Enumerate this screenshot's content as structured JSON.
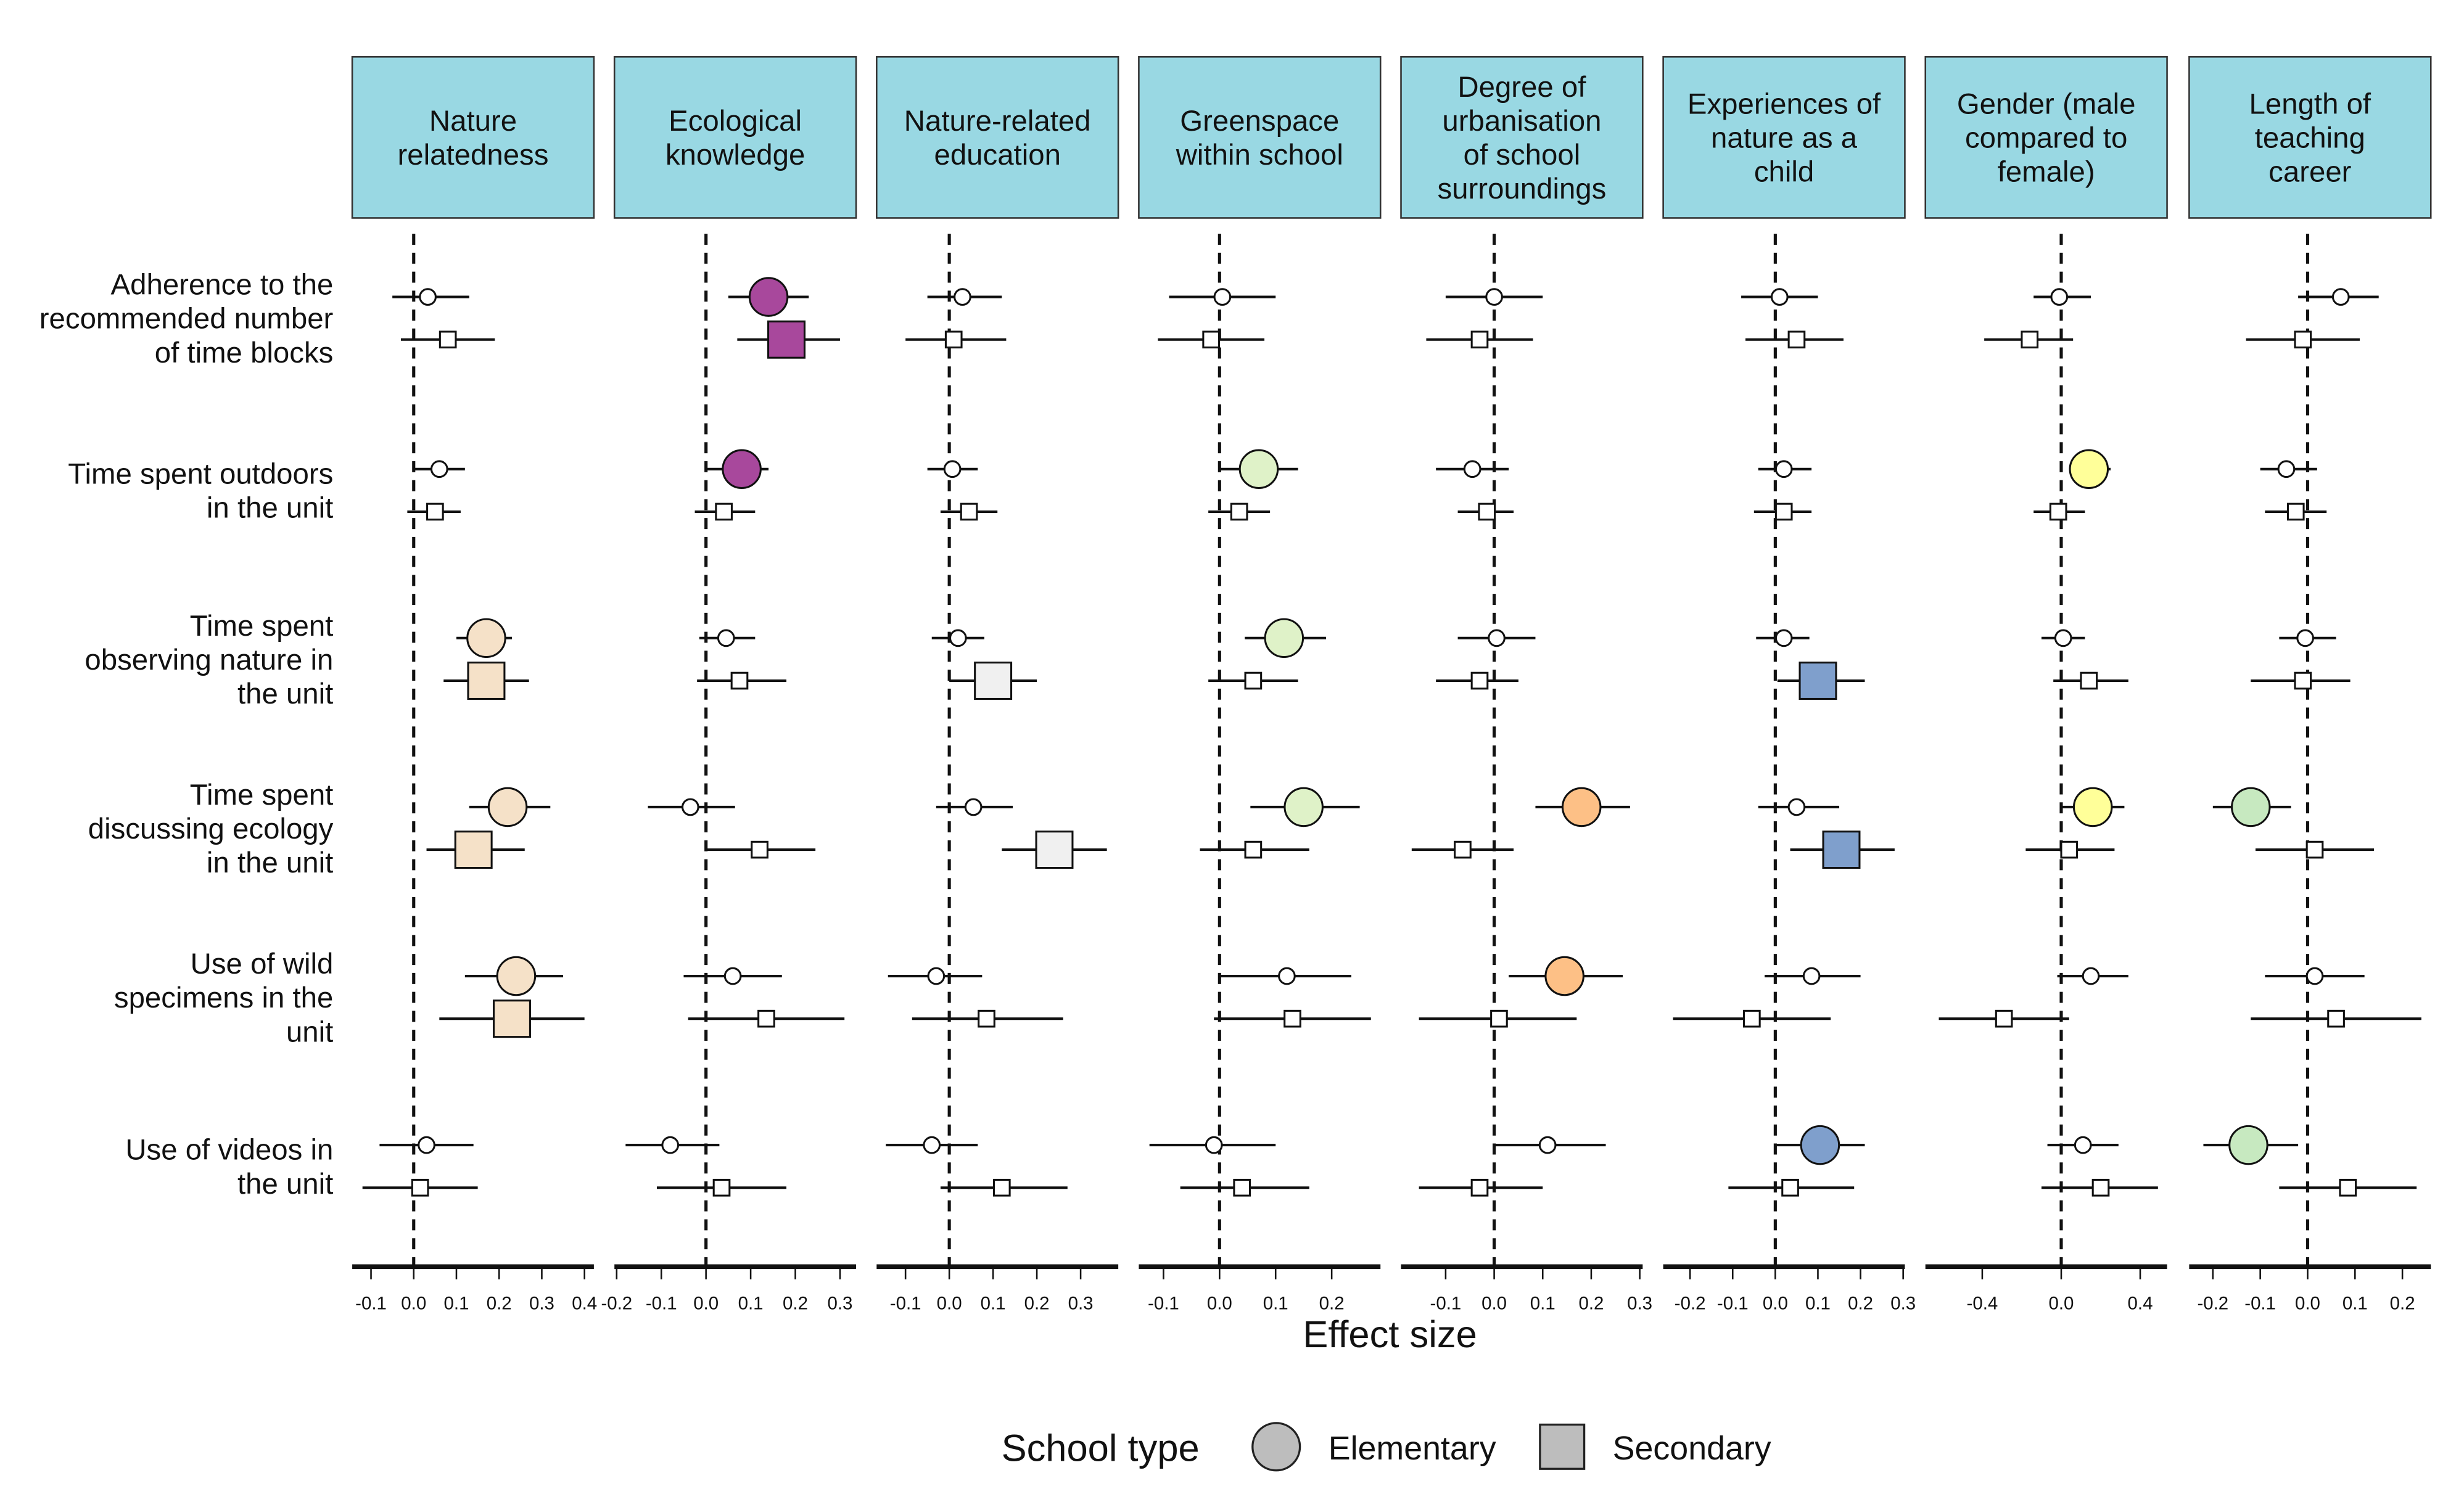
{
  "chart_data": {
    "type": "scatter",
    "subtype": "faceted forest plot (point estimate with confidence interval)",
    "xlabel": "Effect size",
    "legend": {
      "title": "School type",
      "placement": "bottom",
      "entries": [
        "Elementary",
        "Secondary"
      ]
    },
    "rows": [
      "Adherence to the\nrecommended number\nof time blocks",
      "Time spent outdoors\nin the unit",
      "Time spent\nobserving nature in\nthe unit",
      "Time spent\ndiscussing ecology\nin the unit",
      "Use of wild\nspecimens in the\nunit",
      "Use of videos in\nthe unit"
    ],
    "panels": [
      {
        "title": "Nature\nrelatedness",
        "color": "#f5e1c8",
        "xlim": [
          -0.144,
          0.422
        ],
        "ticks": [
          -0.1,
          0.0,
          0.1,
          0.2,
          0.3,
          0.4
        ],
        "tick_labels": [
          "-0.1",
          "0.0",
          "0.1",
          "0.2",
          "0.3",
          "0.4"
        ],
        "elementary": [
          [
            0.033,
            -0.05,
            0.13,
            0
          ],
          [
            0.06,
            0.0,
            0.12,
            0
          ],
          [
            0.17,
            0.1,
            0.23,
            1
          ],
          [
            0.22,
            0.13,
            0.32,
            1
          ],
          [
            0.24,
            0.12,
            0.35,
            1
          ],
          [
            0.03,
            -0.08,
            0.14,
            0
          ]
        ],
        "secondary": [
          [
            0.08,
            -0.03,
            0.19,
            0
          ],
          [
            0.05,
            -0.015,
            0.11,
            0
          ],
          [
            0.17,
            0.07,
            0.27,
            1
          ],
          [
            0.14,
            0.03,
            0.26,
            1
          ],
          [
            0.23,
            0.06,
            0.4,
            1
          ],
          [
            0.015,
            -0.12,
            0.15,
            0
          ]
        ]
      },
      {
        "title": "Ecological\nknowledge",
        "color": "#a8489c",
        "xlim": [
          -0.205,
          0.336
        ],
        "ticks": [
          -0.2,
          -0.1,
          0.0,
          0.1,
          0.2,
          0.3
        ],
        "tick_labels": [
          "-0.2",
          "-0.1",
          "0.0",
          "0.1",
          "0.2",
          "0.3"
        ],
        "elementary": [
          [
            0.14,
            0.05,
            0.23,
            1
          ],
          [
            0.08,
            0.0,
            0.14,
            1
          ],
          [
            0.045,
            -0.015,
            0.11,
            0
          ],
          [
            -0.035,
            -0.13,
            0.065,
            0
          ],
          [
            0.06,
            -0.05,
            0.17,
            0
          ],
          [
            -0.08,
            -0.18,
            0.03,
            0
          ]
        ],
        "secondary": [
          [
            0.18,
            0.07,
            0.3,
            1
          ],
          [
            0.04,
            -0.025,
            0.11,
            0
          ],
          [
            0.075,
            -0.02,
            0.18,
            0
          ],
          [
            0.12,
            0.0,
            0.245,
            0
          ],
          [
            0.135,
            -0.04,
            0.31,
            0
          ],
          [
            0.035,
            -0.11,
            0.18,
            0
          ]
        ]
      },
      {
        "title": "Nature-related\neducation",
        "color": "#f0f0f0",
        "xlim": [
          -0.166,
          0.386
        ],
        "ticks": [
          -0.1,
          0.0,
          0.1,
          0.2,
          0.3
        ],
        "tick_labels": [
          "-0.1",
          "0.0",
          "0.1",
          "0.2",
          "0.3"
        ],
        "elementary": [
          [
            0.03,
            -0.05,
            0.12,
            0
          ],
          [
            0.007,
            -0.05,
            0.065,
            0
          ],
          [
            0.02,
            -0.04,
            0.08,
            0
          ],
          [
            0.055,
            -0.03,
            0.145,
            0
          ],
          [
            -0.03,
            -0.14,
            0.075,
            0
          ],
          [
            -0.04,
            -0.145,
            0.065,
            0
          ]
        ],
        "secondary": [
          [
            0.01,
            -0.1,
            0.13,
            0
          ],
          [
            0.045,
            -0.02,
            0.11,
            0
          ],
          [
            0.1,
            0.0,
            0.2,
            1
          ],
          [
            0.24,
            0.12,
            0.36,
            1
          ],
          [
            0.085,
            -0.085,
            0.26,
            0
          ],
          [
            0.12,
            -0.02,
            0.27,
            0
          ]
        ]
      },
      {
        "title": "Greenspace\nwithin school",
        "color": "#dff2c8",
        "xlim": [
          -0.144,
          0.287
        ],
        "ticks": [
          -0.1,
          0.0,
          0.1,
          0.2
        ],
        "tick_labels": [
          "-0.1",
          "0.0",
          "0.1",
          "0.2"
        ],
        "elementary": [
          [
            0.005,
            -0.09,
            0.1,
            0
          ],
          [
            0.07,
            0.0,
            0.14,
            1
          ],
          [
            0.115,
            0.045,
            0.19,
            1
          ],
          [
            0.15,
            0.055,
            0.25,
            1
          ],
          [
            0.12,
            0.0,
            0.235,
            0
          ],
          [
            -0.01,
            -0.125,
            0.1,
            0
          ]
        ],
        "secondary": [
          [
            -0.015,
            -0.11,
            0.08,
            0
          ],
          [
            0.035,
            -0.02,
            0.09,
            0
          ],
          [
            0.06,
            -0.02,
            0.14,
            0
          ],
          [
            0.06,
            -0.035,
            0.16,
            0
          ],
          [
            0.13,
            -0.01,
            0.27,
            0
          ],
          [
            0.04,
            -0.07,
            0.16,
            0
          ]
        ]
      },
      {
        "title": "Degree of\nurbanisation\nof school\nsurroundings",
        "color": "#fdc086",
        "xlim": [
          -0.192,
          0.306
        ],
        "ticks": [
          -0.1,
          0.0,
          0.1,
          0.2,
          0.3
        ],
        "tick_labels": [
          "-0.1",
          "0.0",
          "0.1",
          "0.2",
          "0.3"
        ],
        "elementary": [
          [
            0.0,
            -0.1,
            0.1,
            0
          ],
          [
            -0.045,
            -0.12,
            0.03,
            0
          ],
          [
            0.005,
            -0.075,
            0.085,
            0
          ],
          [
            0.18,
            0.085,
            0.28,
            1
          ],
          [
            0.145,
            0.03,
            0.265,
            1
          ],
          [
            0.11,
            0.0,
            0.23,
            0
          ]
        ],
        "secondary": [
          [
            -0.03,
            -0.14,
            0.08,
            0
          ],
          [
            -0.015,
            -0.075,
            0.04,
            0
          ],
          [
            -0.03,
            -0.12,
            0.05,
            0
          ],
          [
            -0.065,
            -0.17,
            0.04,
            0
          ],
          [
            0.01,
            -0.155,
            0.17,
            0
          ],
          [
            -0.03,
            -0.155,
            0.1,
            0
          ]
        ]
      },
      {
        "title": "Experiences of\nnature as a\nchild",
        "color": "#7f9fcc",
        "xlim": [
          -0.263,
          0.304
        ],
        "ticks": [
          -0.2,
          -0.1,
          0.0,
          0.1,
          0.2,
          0.3
        ],
        "tick_labels": [
          "-0.2",
          "-0.1",
          "0.0",
          "0.1",
          "0.2",
          "0.3"
        ],
        "elementary": [
          [
            0.01,
            -0.08,
            0.1,
            0
          ],
          [
            0.02,
            -0.04,
            0.085,
            0
          ],
          [
            0.02,
            -0.045,
            0.08,
            0
          ],
          [
            0.05,
            -0.04,
            0.15,
            0
          ],
          [
            0.085,
            -0.025,
            0.2,
            0
          ],
          [
            0.105,
            0.0,
            0.21,
            1
          ]
        ],
        "secondary": [
          [
            0.05,
            -0.07,
            0.16,
            0
          ],
          [
            0.02,
            -0.05,
            0.085,
            0
          ],
          [
            0.1,
            0.005,
            0.21,
            1
          ],
          [
            0.155,
            0.035,
            0.28,
            1
          ],
          [
            -0.055,
            -0.24,
            0.13,
            0
          ],
          [
            0.035,
            -0.11,
            0.185,
            0
          ]
        ]
      },
      {
        "title": "Gender (male\ncompared to\nfemale)",
        "color": "#ffff99",
        "xlim": [
          -0.688,
          0.536
        ],
        "ticks": [
          -0.4,
          0.0,
          0.4
        ],
        "tick_labels": [
          "-0.4",
          "0.0",
          "0.4"
        ],
        "elementary": [
          [
            -0.01,
            -0.14,
            0.15,
            0
          ],
          [
            0.14,
            0.04,
            0.25,
            1
          ],
          [
            0.01,
            -0.1,
            0.12,
            0
          ],
          [
            0.16,
            0.0,
            0.32,
            1
          ],
          [
            0.15,
            -0.02,
            0.34,
            0
          ],
          [
            0.11,
            -0.07,
            0.29,
            0
          ]
        ],
        "secondary": [
          [
            -0.16,
            -0.39,
            0.06,
            0
          ],
          [
            -0.015,
            -0.14,
            0.12,
            0
          ],
          [
            0.14,
            -0.04,
            0.34,
            0
          ],
          [
            0.04,
            -0.18,
            0.27,
            0
          ],
          [
            -0.29,
            -0.62,
            0.04,
            0
          ],
          [
            0.2,
            -0.1,
            0.49,
            0
          ]
        ]
      },
      {
        "title": "Length of\nteaching\ncareer",
        "color": "#c7e9c0",
        "xlim": [
          -0.25,
          0.26
        ],
        "ticks": [
          -0.2,
          -0.1,
          0.0,
          0.1,
          0.2
        ],
        "tick_labels": [
          "-0.2",
          "-0.1",
          "0.0",
          "0.1",
          "0.2"
        ],
        "elementary": [
          [
            0.07,
            -0.02,
            0.15,
            0
          ],
          [
            -0.045,
            -0.1,
            0.02,
            0
          ],
          [
            -0.005,
            -0.06,
            0.06,
            0
          ],
          [
            -0.12,
            -0.2,
            -0.035,
            1
          ],
          [
            0.015,
            -0.09,
            0.12,
            0
          ],
          [
            -0.125,
            -0.22,
            -0.02,
            1
          ]
        ],
        "secondary": [
          [
            -0.01,
            -0.13,
            0.11,
            0
          ],
          [
            -0.025,
            -0.09,
            0.04,
            0
          ],
          [
            -0.01,
            -0.12,
            0.09,
            0
          ],
          [
            0.015,
            -0.11,
            0.14,
            0
          ],
          [
            0.06,
            -0.12,
            0.24,
            0
          ],
          [
            0.085,
            -0.06,
            0.23,
            0
          ]
        ]
      }
    ]
  }
}
